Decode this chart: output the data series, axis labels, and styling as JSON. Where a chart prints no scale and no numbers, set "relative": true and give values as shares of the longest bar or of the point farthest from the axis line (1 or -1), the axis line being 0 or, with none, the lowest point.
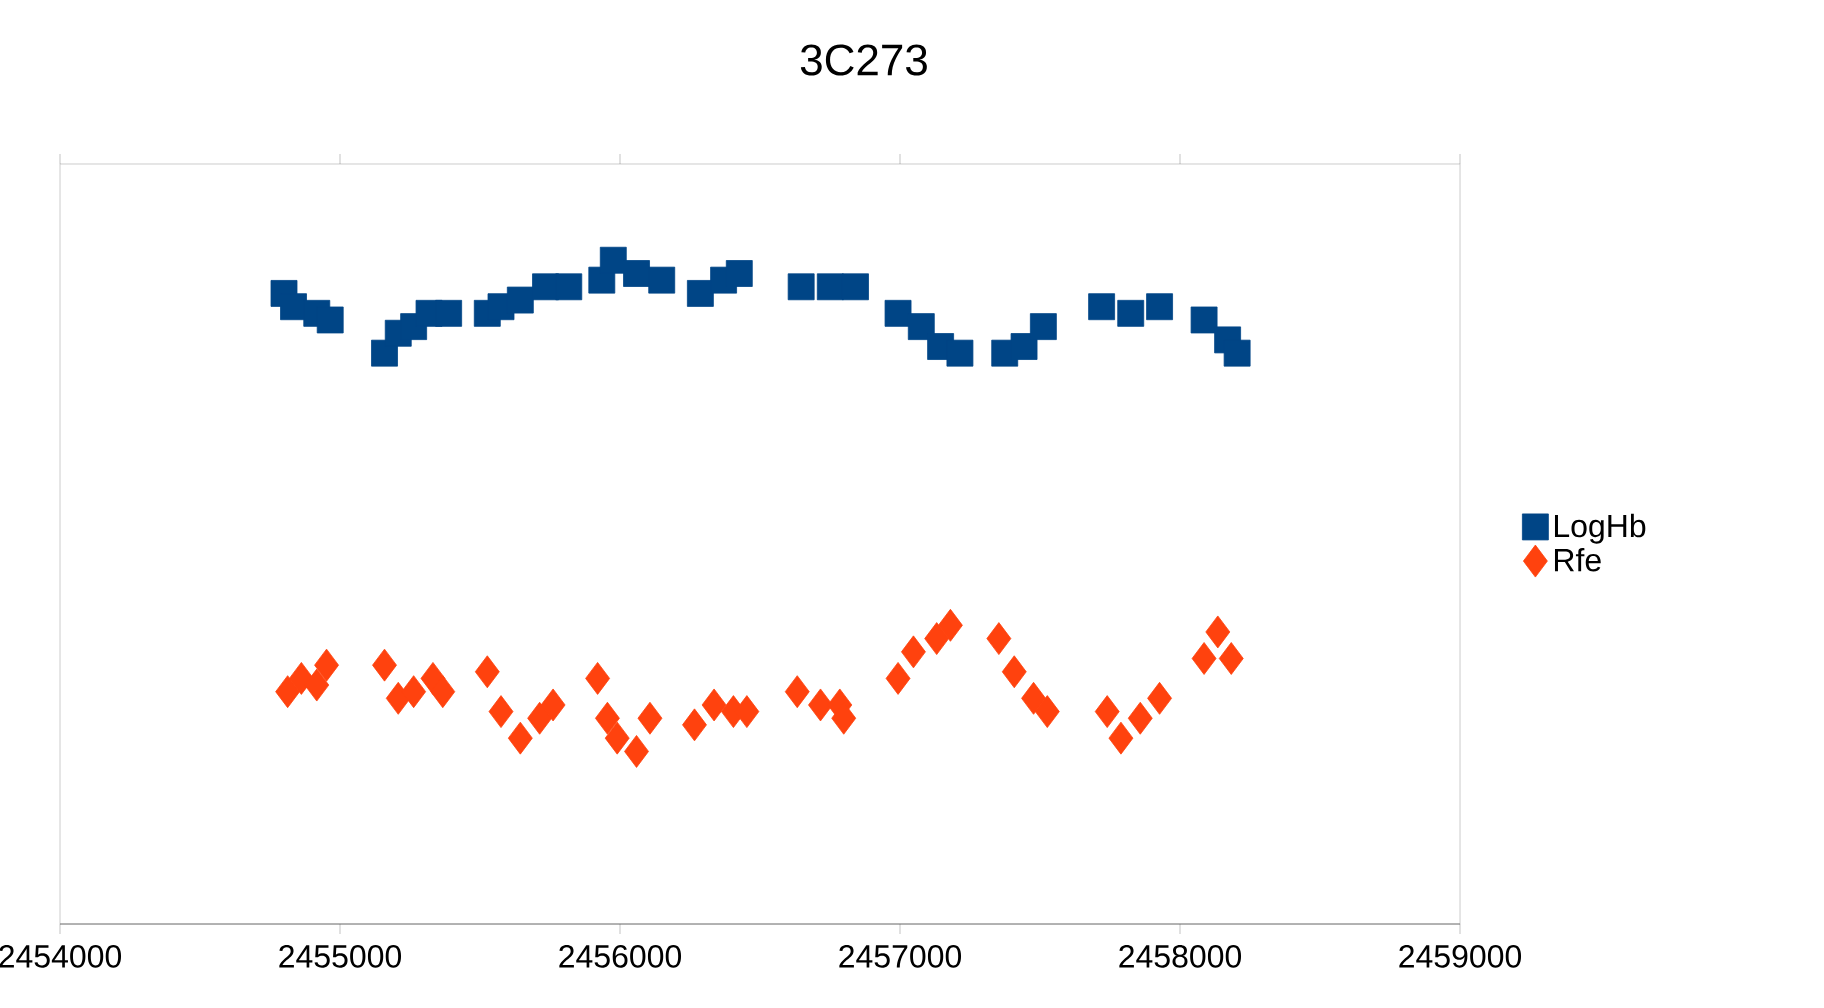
{
  "chart_data": {
    "type": "scatter",
    "title": "3C273",
    "relative": true,
    "legend": "right",
    "grid": false,
    "tick_labels": "x",
    "xlim": [
      2454000,
      2459000
    ],
    "xticks": [
      2454000,
      2455000,
      2456000,
      2457000,
      2458000,
      2459000
    ],
    "series": [
      {
        "name": "LogHb",
        "color": "#004586",
        "marker": "square",
        "x": [
          2454800,
          2454834,
          2454917,
          2454965,
          2455159,
          2455208,
          2455263,
          2455318,
          2455388,
          2455526,
          2455575,
          2455644,
          2455734,
          2455817,
          2455935,
          2455976,
          2456059,
          2456149,
          2456287,
          2456370,
          2456426,
          2456647,
          2456751,
          2456841,
          2456993,
          2457076,
          2457145,
          2457214,
          2457374,
          2457443,
          2457512,
          2457720,
          2457824,
          2457927,
          2458086,
          2458170,
          2458204
        ],
        "values": [
          0.95,
          0.93,
          0.92,
          0.91,
          0.86,
          0.89,
          0.9,
          0.92,
          0.92,
          0.92,
          0.93,
          0.94,
          0.96,
          0.96,
          0.97,
          1.0,
          0.98,
          0.97,
          0.95,
          0.97,
          0.98,
          0.96,
          0.96,
          0.96,
          0.92,
          0.9,
          0.87,
          0.86,
          0.86,
          0.87,
          0.9,
          0.93,
          0.92,
          0.93,
          0.91,
          0.88,
          0.86
        ]
      },
      {
        "name": "Rfe",
        "color": "#ff420e",
        "marker": "diamond",
        "x": [
          2454813,
          2454862,
          2454917,
          2454952,
          2455159,
          2455208,
          2455263,
          2455332,
          2455367,
          2455526,
          2455575,
          2455644,
          2455713,
          2455761,
          2455920,
          2455955,
          2455990,
          2456059,
          2456107,
          2456266,
          2456336,
          2456405,
          2456453,
          2456633,
          2456716,
          2456785,
          2456799,
          2456993,
          2457048,
          2457131,
          2457180,
          2457353,
          2457408,
          2457477,
          2457526,
          2457740,
          2457789,
          2457858,
          2457927,
          2458086,
          2458135,
          2458183
        ],
        "values": [
          0.35,
          0.37,
          0.36,
          0.39,
          0.39,
          0.34,
          0.35,
          0.37,
          0.35,
          0.38,
          0.32,
          0.28,
          0.31,
          0.33,
          0.37,
          0.31,
          0.28,
          0.26,
          0.31,
          0.3,
          0.33,
          0.32,
          0.32,
          0.35,
          0.33,
          0.33,
          0.31,
          0.37,
          0.41,
          0.43,
          0.45,
          0.43,
          0.38,
          0.34,
          0.32,
          0.32,
          0.28,
          0.31,
          0.34,
          0.4,
          0.44,
          0.4
        ]
      }
    ]
  }
}
